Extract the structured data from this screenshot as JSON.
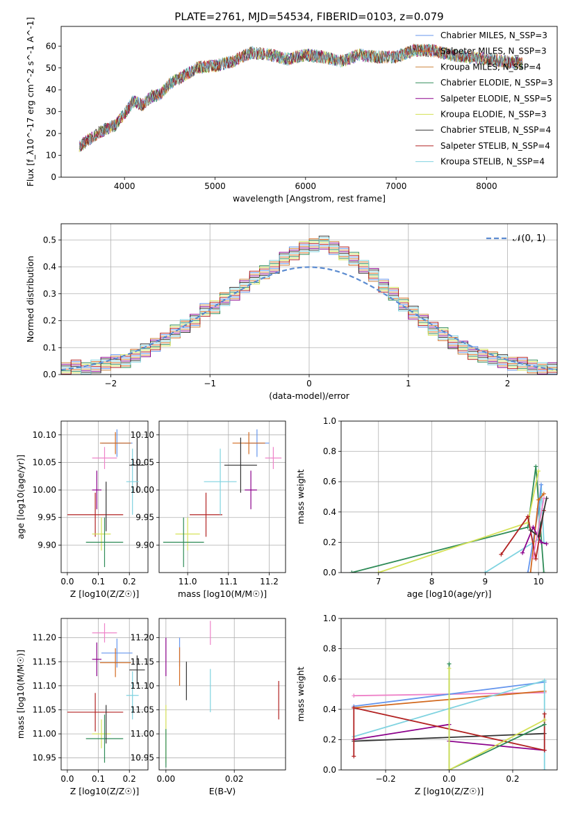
{
  "figure_title": "PLATE=2761, MJD=54534, FIBERID=0103, z=0.079",
  "colors": [
    "#6495ed",
    "#d2691e",
    "#cd853f",
    "#2e8b57",
    "#8b008b",
    "#d4e157",
    "#333333",
    "#b22222",
    "#7fd3e0"
  ],
  "chart_data": [
    {
      "id": "spectrum",
      "type": "line",
      "xlabel": "wavelength [Angstrom, rest frame]",
      "ylabel": "Flux [f_λ10^-17 erg cm^-2 s^-1 A^-1]",
      "xlim": [
        3300,
        8780
      ],
      "ylim": [
        0,
        69
      ],
      "xticks": [
        4000,
        5000,
        6000,
        7000,
        8000
      ],
      "yticks": [
        0,
        10,
        20,
        30,
        40,
        50,
        60
      ],
      "grid": false,
      "legend_position": "right",
      "x": [
        3500,
        3700,
        3900,
        4000,
        4100,
        4200,
        4300,
        4400,
        4500,
        4600,
        4800,
        5000,
        5200,
        5400,
        5600,
        5800,
        6000,
        6200,
        6400,
        6600,
        6800,
        7000,
        7200,
        7400,
        7600,
        7800,
        8000,
        8200,
        8400
      ],
      "y": [
        14,
        20,
        24,
        29,
        35,
        33,
        37,
        38,
        43,
        45,
        50,
        51,
        53,
        57,
        56,
        54,
        56,
        55,
        53,
        56,
        55,
        55,
        58,
        58,
        56,
        55,
        54,
        53,
        52
      ],
      "series": [
        {
          "name": "Chabrier MILES, N_SSP=3",
          "color": "#6495ed"
        },
        {
          "name": "Salpeter MILES, N_SSP=3",
          "color": "#d2691e"
        },
        {
          "name": "Kroupa MILES, N_SSP=4",
          "color": "#cd853f"
        },
        {
          "name": "Chabrier ELODIE, N_SSP=3",
          "color": "#2e8b57"
        },
        {
          "name": "Salpeter ELODIE, N_SSP=5",
          "color": "#8b008b"
        },
        {
          "name": "Kroupa ELODIE, N_SSP=3",
          "color": "#d4e157"
        },
        {
          "name": "Chabrier STELIB, N_SSP=4",
          "color": "#333333"
        },
        {
          "name": "Salpeter STELIB, N_SSP=4",
          "color": "#b22222"
        },
        {
          "name": "Kroupa STELIB, N_SSP=4",
          "color": "#7fd3e0"
        }
      ]
    },
    {
      "id": "residual_hist",
      "type": "line",
      "xlabel": "(data-model)/error",
      "ylabel": "Normed distribution",
      "xlim": [
        -2.5,
        2.5
      ],
      "ylim": [
        0,
        0.56
      ],
      "xticks": [
        -2,
        -1,
        0,
        1,
        2
      ],
      "yticks": [
        0.0,
        0.1,
        0.2,
        0.3,
        0.4,
        0.5
      ],
      "grid": true,
      "legend_position": "top-right",
      "legend_label": "𝒩(0, 1)",
      "bins": [
        -2.5,
        -2.4,
        -2.3,
        -2.2,
        -2.1,
        -2.0,
        -1.9,
        -1.8,
        -1.7,
        -1.6,
        -1.5,
        -1.4,
        -1.3,
        -1.2,
        -1.1,
        -1.0,
        -0.9,
        -0.8,
        -0.7,
        -0.6,
        -0.5,
        -0.4,
        -0.3,
        -0.2,
        -0.1,
        0.0,
        0.1,
        0.2,
        0.3,
        0.4,
        0.5,
        0.6,
        0.7,
        0.8,
        0.9,
        1.0,
        1.1,
        1.2,
        1.3,
        1.4,
        1.5,
        1.6,
        1.7,
        1.8,
        1.9,
        2.0,
        2.1,
        2.2,
        2.3,
        2.4
      ],
      "hist_values": [
        0.02,
        0.03,
        0.02,
        0.03,
        0.04,
        0.05,
        0.05,
        0.07,
        0.09,
        0.11,
        0.13,
        0.16,
        0.18,
        0.2,
        0.24,
        0.25,
        0.28,
        0.3,
        0.33,
        0.36,
        0.38,
        0.4,
        0.43,
        0.45,
        0.47,
        0.48,
        0.49,
        0.47,
        0.45,
        0.43,
        0.4,
        0.37,
        0.33,
        0.3,
        0.26,
        0.23,
        0.2,
        0.17,
        0.15,
        0.12,
        0.1,
        0.08,
        0.07,
        0.06,
        0.05,
        0.04,
        0.04,
        0.03,
        0.02,
        0.02
      ],
      "series": [
        {
          "name": "𝒩(0, 1)",
          "type": "line",
          "style": "dashed",
          "color": "#5b8bd0"
        }
      ]
    },
    {
      "id": "age_vs_Z",
      "type": "scatter",
      "xlabel": "Z [log10(Z/Z☉)]",
      "ylabel": "age [log10(age/yr)]",
      "xlim": [
        -0.02,
        0.26
      ],
      "ylim": [
        9.85,
        10.125
      ],
      "xticks": [
        0.0,
        0.1,
        0.2
      ],
      "yticks": [
        9.9,
        9.95,
        10.0,
        10.05,
        10.1
      ],
      "grid": true,
      "points": [
        {
          "x": 0.16,
          "y": 10.085,
          "xerr": 0.05,
          "yerr": 0.025,
          "color": "#6495ed"
        },
        {
          "x": 0.155,
          "y": 10.085,
          "xerr": 0.05,
          "yerr": 0.02,
          "color": "#d2691e"
        },
        {
          "x": 0.12,
          "y": 10.058,
          "xerr": 0.04,
          "yerr": 0.02,
          "color": "#ee82c8"
        },
        {
          "x": 0.095,
          "y": 10.0,
          "xerr": 0.015,
          "yerr": 0.035,
          "color": "#8b008b"
        },
        {
          "x": 0.09,
          "y": 9.955,
          "xerr": 0.09,
          "yerr": 0.04,
          "color": "#b22222"
        },
        {
          "x": 0.11,
          "y": 9.92,
          "xerr": 0.03,
          "yerr": 0.03,
          "color": "#d4e157"
        },
        {
          "x": 0.12,
          "y": 9.905,
          "xerr": 0.06,
          "yerr": 0.045,
          "color": "#2e8b57"
        },
        {
          "x": 0.125,
          "y": 9.97,
          "xerr": 0.0,
          "yerr": 0.045,
          "color": "#333333"
        },
        {
          "x": 0.225,
          "y": 10.045,
          "xerr": 0.025,
          "yerr": 0.05,
          "color": "#333333"
        },
        {
          "x": 0.21,
          "y": 10.015,
          "xerr": 0.02,
          "yerr": 0.06,
          "color": "#7fd3e0"
        }
      ]
    },
    {
      "id": "age_vs_mass",
      "type": "scatter",
      "xlabel": "mass [log10(M/M☉)]",
      "ylabel": "",
      "xlim": [
        10.93,
        11.24
      ],
      "ylim": [
        9.85,
        10.125
      ],
      "xticks": [
        11.0,
        11.1,
        11.2
      ],
      "yticks": [
        9.9,
        9.95,
        10.0,
        10.05,
        10.1
      ],
      "grid": true,
      "points": [
        {
          "x": 11.17,
          "y": 10.085,
          "xerr": 0.03,
          "yerr": 0.025,
          "color": "#6495ed"
        },
        {
          "x": 11.15,
          "y": 10.085,
          "xerr": 0.04,
          "yerr": 0.02,
          "color": "#d2691e"
        },
        {
          "x": 11.21,
          "y": 10.058,
          "xerr": 0.02,
          "yerr": 0.02,
          "color": "#ee82c8"
        },
        {
          "x": 11.155,
          "y": 10.0,
          "xerr": 0.015,
          "yerr": 0.035,
          "color": "#8b008b"
        },
        {
          "x": 11.045,
          "y": 9.955,
          "xerr": 0.04,
          "yerr": 0.04,
          "color": "#b22222"
        },
        {
          "x": 11.0,
          "y": 9.92,
          "xerr": 0.03,
          "yerr": 0.03,
          "color": "#d4e157"
        },
        {
          "x": 10.99,
          "y": 9.905,
          "xerr": 0.05,
          "yerr": 0.045,
          "color": "#2e8b57"
        },
        {
          "x": 11.13,
          "y": 10.045,
          "xerr": 0.04,
          "yerr": 0.05,
          "color": "#333333"
        },
        {
          "x": 11.08,
          "y": 10.015,
          "xerr": 0.04,
          "yerr": 0.06,
          "color": "#7fd3e0"
        }
      ]
    },
    {
      "id": "weight_vs_age",
      "type": "line",
      "xlabel": "age [log10(age/yr)]",
      "ylabel": "mass weight",
      "xlim": [
        6.3,
        10.35
      ],
      "ylim": [
        0,
        1.0
      ],
      "xticks": [
        7,
        8,
        9,
        10
      ],
      "yticks": [
        0.0,
        0.2,
        0.4,
        0.6,
        0.8,
        1.0
      ],
      "grid": true,
      "series": [
        {
          "color": "#2e8b57",
          "x": [
            6.5,
            9.8,
            9.95,
            10.1
          ],
          "y": [
            0.0,
            0.3,
            0.7,
            0.0
          ]
        },
        {
          "color": "#d4e157",
          "x": [
            7.0,
            9.8,
            10.0
          ],
          "y": [
            0.0,
            0.33,
            0.67
          ]
        },
        {
          "color": "#7fd3e0",
          "x": [
            9.0,
            10.0,
            10.05,
            10.1
          ],
          "y": [
            0.0,
            0.22,
            0.58,
            0.2
          ]
        },
        {
          "color": "#6495ed",
          "x": [
            9.8,
            10.0,
            10.05
          ],
          "y": [
            0.0,
            0.42,
            0.58
          ]
        },
        {
          "color": "#d2691e",
          "x": [
            9.85,
            10.0,
            10.1
          ],
          "y": [
            0.0,
            0.48,
            0.52
          ]
        },
        {
          "color": "#8b008b",
          "x": [
            9.7,
            9.9,
            10.05,
            10.15
          ],
          "y": [
            0.13,
            0.3,
            0.2,
            0.19
          ]
        },
        {
          "color": "#b22222",
          "x": [
            9.3,
            9.8,
            9.95,
            10.1
          ],
          "y": [
            0.12,
            0.37,
            0.09,
            0.41
          ]
        },
        {
          "color": "#333333",
          "x": [
            9.85,
            10.0,
            10.15
          ],
          "y": [
            0.28,
            0.24,
            0.49
          ]
        },
        {
          "color": "#ee82c8",
          "x": [
            9.9,
            10.1
          ],
          "y": [
            0.1,
            0.49
          ]
        }
      ]
    },
    {
      "id": "mass_vs_Z",
      "type": "scatter",
      "xlabel": "Z [log10(Z/Z☉)]",
      "ylabel": "mass [log10(M/M☉)]",
      "xlim": [
        -0.02,
        0.26
      ],
      "ylim": [
        10.925,
        11.24
      ],
      "xticks": [
        0.0,
        0.1,
        0.2
      ],
      "yticks": [
        10.95,
        11.0,
        11.05,
        11.1,
        11.15,
        11.2
      ],
      "grid": true,
      "points": [
        {
          "x": 0.12,
          "y": 11.21,
          "xerr": 0.04,
          "yerr": 0.02,
          "color": "#ee82c8"
        },
        {
          "x": 0.095,
          "y": 11.155,
          "xerr": 0.015,
          "yerr": 0.035,
          "color": "#8b008b"
        },
        {
          "x": 0.16,
          "y": 11.168,
          "xerr": 0.05,
          "yerr": 0.03,
          "color": "#6495ed"
        },
        {
          "x": 0.155,
          "y": 11.148,
          "xerr": 0.05,
          "yerr": 0.03,
          "color": "#d2691e"
        },
        {
          "x": 0.09,
          "y": 11.045,
          "xerr": 0.09,
          "yerr": 0.04,
          "color": "#b22222"
        },
        {
          "x": 0.11,
          "y": 11.0,
          "xerr": 0.03,
          "yerr": 0.03,
          "color": "#d4e157"
        },
        {
          "x": 0.12,
          "y": 10.99,
          "xerr": 0.06,
          "yerr": 0.05,
          "color": "#2e8b57"
        },
        {
          "x": 0.125,
          "y": 11.02,
          "xerr": 0.0,
          "yerr": 0.04,
          "color": "#333333"
        },
        {
          "x": 0.225,
          "y": 11.133,
          "xerr": 0.025,
          "yerr": 0.03,
          "color": "#333333"
        },
        {
          "x": 0.21,
          "y": 11.08,
          "xerr": 0.02,
          "yerr": 0.05,
          "color": "#7fd3e0"
        }
      ]
    },
    {
      "id": "mass_vs_ebv",
      "type": "scatter",
      "xlabel": "E(B-V)",
      "ylabel": "",
      "xlim": [
        -0.002,
        0.035
      ],
      "ylim": [
        10.925,
        11.24
      ],
      "xticks": [
        0.0,
        0.02
      ],
      "yticks": [
        10.95,
        11.0,
        11.05,
        11.1,
        11.15,
        11.2
      ],
      "grid": true,
      "points": [
        {
          "x": 0.0,
          "y": 11.16,
          "xerr": 0.0,
          "yerr": 0.04,
          "color": "#8b008b"
        },
        {
          "x": 0.004,
          "y": 11.17,
          "xerr": 0.0,
          "yerr": 0.03,
          "color": "#6495ed"
        },
        {
          "x": 0.004,
          "y": 11.14,
          "xerr": 0.0,
          "yerr": 0.04,
          "color": "#d2691e"
        },
        {
          "x": 0.006,
          "y": 11.11,
          "xerr": 0.0,
          "yerr": 0.04,
          "color": "#333333"
        },
        {
          "x": 0.013,
          "y": 11.21,
          "xerr": 0.0,
          "yerr": 0.025,
          "color": "#ee82c8"
        },
        {
          "x": 0.013,
          "y": 11.09,
          "xerr": 0.0,
          "yerr": 0.045,
          "color": "#7fd3e0"
        },
        {
          "x": 0.0,
          "y": 11.0,
          "xerr": 0.0,
          "yerr": 0.06,
          "color": "#d4e157"
        },
        {
          "x": 0.0,
          "y": 10.97,
          "xerr": 0.0,
          "yerr": 0.04,
          "color": "#2e8b57"
        },
        {
          "x": 0.033,
          "y": 11.07,
          "xerr": 0.0,
          "yerr": 0.04,
          "color": "#b22222"
        }
      ]
    },
    {
      "id": "weight_vs_Z",
      "type": "line",
      "xlabel": "Z [log10(Z/Z☉)]",
      "ylabel": "mass weight",
      "xlim": [
        -0.34,
        0.34
      ],
      "ylim": [
        0,
        1.0
      ],
      "xticks": [
        -0.2,
        0.0,
        0.2
      ],
      "yticks": [
        0.0,
        0.2,
        0.4,
        0.6,
        0.8,
        1.0
      ],
      "grid": true,
      "series": [
        {
          "color": "#ee82c8",
          "x": [
            -0.3,
            0.3
          ],
          "y": [
            0.49,
            0.51
          ]
        },
        {
          "color": "#6495ed",
          "x": [
            -0.3,
            0.3
          ],
          "y": [
            0.42,
            0.58
          ]
        },
        {
          "color": "#d2691e",
          "x": [
            -0.3,
            0.3
          ],
          "y": [
            0.41,
            0.52
          ]
        },
        {
          "color": "#7fd3e0",
          "x": [
            -0.3,
            0.3,
            0.3
          ],
          "y": [
            0.22,
            0.59,
            0.0
          ]
        },
        {
          "color": "#8b008b",
          "x": [
            -0.3,
            0.0,
            0.0,
            0.3
          ],
          "y": [
            0.2,
            0.3,
            0.19,
            0.13
          ]
        },
        {
          "color": "#333333",
          "x": [
            -0.3,
            0.3
          ],
          "y": [
            0.19,
            0.24
          ]
        },
        {
          "color": "#b22222",
          "x": [
            -0.3,
            -0.3,
            0.3,
            0.3
          ],
          "y": [
            0.09,
            0.41,
            0.13,
            0.37
          ]
        },
        {
          "color": "#2e8b57",
          "x": [
            0.0,
            0.0,
            0.3
          ],
          "y": [
            0.7,
            0.0,
            0.3
          ]
        },
        {
          "color": "#d4e157",
          "x": [
            0.0,
            0.0,
            0.3
          ],
          "y": [
            0.67,
            0.0,
            0.33
          ]
        }
      ]
    }
  ]
}
